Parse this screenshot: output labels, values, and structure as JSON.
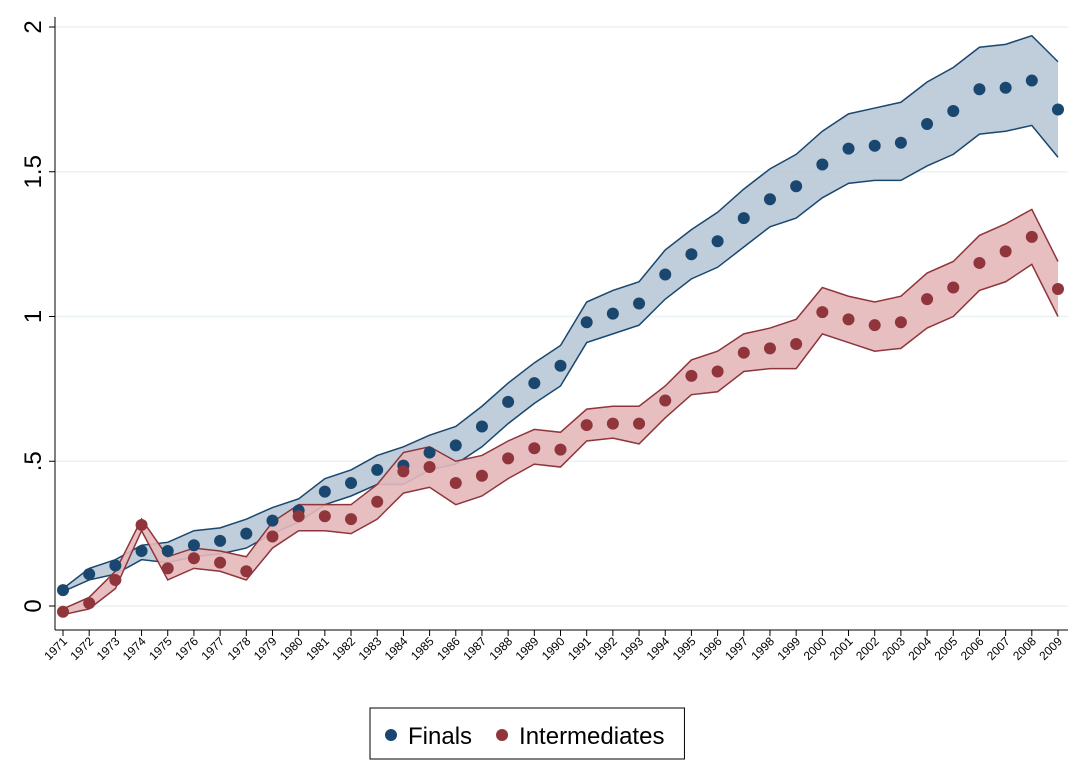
{
  "chart_data": {
    "type": "band-scatter",
    "categories": [
      "1971",
      "1972",
      "1973",
      "1974",
      "1975",
      "1976",
      "1977",
      "1978",
      "1979",
      "1980",
      "1981",
      "1982",
      "1983",
      "1984",
      "1985",
      "1986",
      "1987",
      "1988",
      "1989",
      "1990",
      "1991",
      "1992",
      "1993",
      "1994",
      "1995",
      "1996",
      "1997",
      "1998",
      "1999",
      "2000",
      "2001",
      "2002",
      "2003",
      "2004",
      "2005",
      "2006",
      "2007",
      "2008",
      "2009"
    ],
    "ylim": [
      0,
      2
    ],
    "yticks": [
      0,
      {
        "value": 0.5,
        "label": ".5"
      },
      1,
      1.5,
      2
    ],
    "grid": true,
    "legend": "bottom",
    "series": [
      {
        "name": "Finals",
        "color": "#1a476f",
        "band_color": "#b9c8d6",
        "values": [
          0.055,
          0.11,
          0.14,
          0.19,
          0.19,
          0.21,
          0.225,
          0.25,
          0.295,
          0.33,
          0.395,
          0.425,
          0.47,
          0.485,
          0.53,
          0.555,
          0.62,
          0.705,
          0.77,
          0.83,
          0.98,
          1.01,
          1.045,
          1.145,
          1.215,
          1.26,
          1.34,
          1.405,
          1.45,
          1.525,
          1.58,
          1.59,
          1.6,
          1.665,
          1.71,
          1.785,
          1.79,
          1.815,
          1.715
        ],
        "upper": [
          0.06,
          0.13,
          0.16,
          0.21,
          0.22,
          0.26,
          0.27,
          0.3,
          0.34,
          0.37,
          0.44,
          0.47,
          0.52,
          0.55,
          0.59,
          0.62,
          0.69,
          0.77,
          0.84,
          0.9,
          1.05,
          1.09,
          1.12,
          1.23,
          1.3,
          1.36,
          1.44,
          1.51,
          1.56,
          1.64,
          1.7,
          1.72,
          1.74,
          1.81,
          1.86,
          1.93,
          1.94,
          1.97,
          1.88
        ],
        "lower": [
          0.05,
          0.09,
          0.11,
          0.16,
          0.15,
          0.17,
          0.18,
          0.2,
          0.25,
          0.29,
          0.35,
          0.38,
          0.42,
          0.42,
          0.47,
          0.49,
          0.55,
          0.63,
          0.7,
          0.76,
          0.91,
          0.94,
          0.97,
          1.06,
          1.13,
          1.17,
          1.24,
          1.31,
          1.34,
          1.41,
          1.46,
          1.47,
          1.47,
          1.52,
          1.56,
          1.63,
          1.64,
          1.66,
          1.55
        ]
      },
      {
        "name": "Intermediates",
        "color": "#90353b",
        "band_color": "#e4b8ba",
        "values": [
          -0.02,
          0.01,
          0.09,
          0.28,
          0.13,
          0.165,
          0.15,
          0.12,
          0.24,
          0.31,
          0.31,
          0.3,
          0.36,
          0.465,
          0.48,
          0.425,
          0.45,
          0.51,
          0.545,
          0.54,
          0.625,
          0.63,
          0.63,
          0.71,
          0.795,
          0.81,
          0.875,
          0.89,
          0.905,
          1.015,
          0.99,
          0.97,
          0.98,
          1.06,
          1.1,
          1.185,
          1.225,
          1.275,
          1.095
        ],
        "upper": [
          -0.01,
          0.03,
          0.12,
          0.3,
          0.17,
          0.2,
          0.19,
          0.17,
          0.29,
          0.35,
          0.35,
          0.35,
          0.42,
          0.53,
          0.55,
          0.5,
          0.52,
          0.57,
          0.61,
          0.6,
          0.68,
          0.69,
          0.69,
          0.76,
          0.85,
          0.88,
          0.94,
          0.96,
          0.99,
          1.1,
          1.07,
          1.05,
          1.07,
          1.15,
          1.19,
          1.28,
          1.32,
          1.37,
          1.19
        ],
        "lower": [
          -0.03,
          -0.01,
          0.06,
          0.26,
          0.09,
          0.13,
          0.12,
          0.09,
          0.2,
          0.26,
          0.26,
          0.25,
          0.3,
          0.39,
          0.41,
          0.35,
          0.38,
          0.44,
          0.49,
          0.48,
          0.57,
          0.58,
          0.56,
          0.65,
          0.73,
          0.74,
          0.81,
          0.82,
          0.82,
          0.94,
          0.91,
          0.88,
          0.89,
          0.96,
          1.0,
          1.09,
          1.12,
          1.18,
          1.0
        ]
      }
    ]
  }
}
